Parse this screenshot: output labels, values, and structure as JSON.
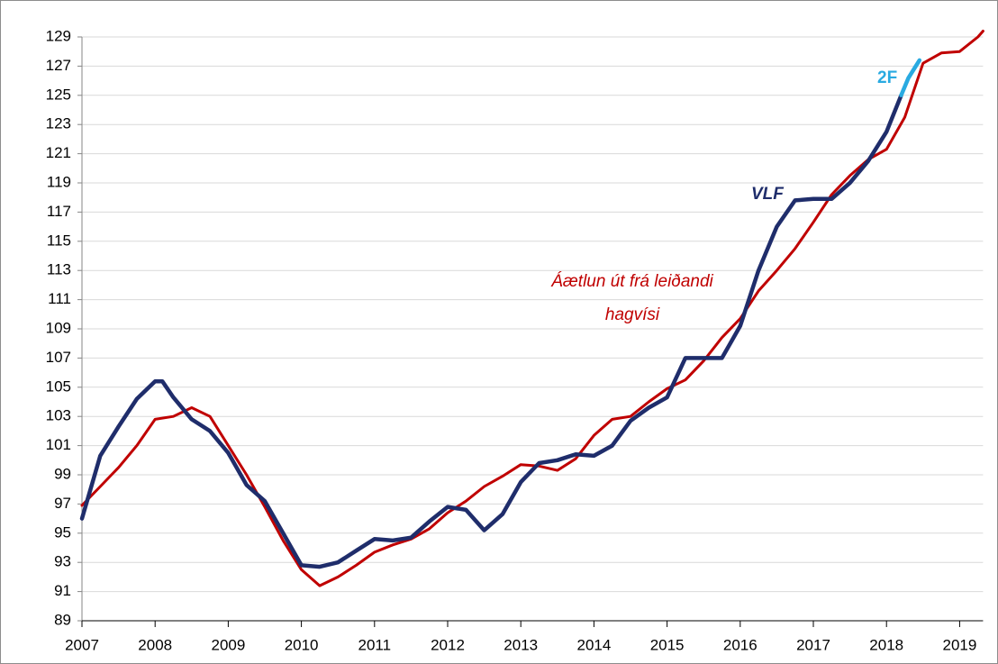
{
  "chart_data": {
    "type": "line",
    "xlim": [
      2007,
      2019.32
    ],
    "xticks": [
      2007,
      2008,
      2009,
      2010,
      2011,
      2012,
      2013,
      2014,
      2015,
      2016,
      2017,
      2018,
      2019
    ],
    "ylim": [
      89,
      129
    ],
    "yticks": [
      89,
      91,
      93,
      95,
      97,
      99,
      101,
      103,
      105,
      107,
      109,
      111,
      113,
      115,
      117,
      119,
      121,
      123,
      125,
      127,
      129
    ],
    "grid": true,
    "series": [
      {
        "name": "Áætlun út frá leiðandi hagvísi",
        "color": "#c00000",
        "x": [
          2007.0,
          2007.25,
          2007.5,
          2007.75,
          2008.0,
          2008.25,
          2008.5,
          2008.75,
          2009.0,
          2009.25,
          2009.5,
          2009.75,
          2010.0,
          2010.25,
          2010.5,
          2010.75,
          2011.0,
          2011.25,
          2011.5,
          2011.75,
          2012.0,
          2012.25,
          2012.5,
          2012.75,
          2013.0,
          2013.25,
          2013.5,
          2013.75,
          2014.0,
          2014.25,
          2014.5,
          2014.75,
          2015.0,
          2015.25,
          2015.5,
          2015.75,
          2016.0,
          2016.25,
          2016.5,
          2016.75,
          2017.0,
          2017.25,
          2017.5,
          2017.75,
          2018.0,
          2018.25,
          2018.5,
          2018.75,
          2019.0,
          2019.25,
          2019.32
        ],
        "values": [
          96.9,
          98.2,
          99.5,
          101.0,
          102.8,
          103.0,
          103.6,
          103.0,
          101.0,
          99.0,
          96.8,
          94.5,
          92.5,
          91.4,
          92.0,
          92.8,
          93.7,
          94.2,
          94.6,
          95.3,
          96.4,
          97.2,
          98.2,
          98.9,
          99.7,
          99.6,
          99.3,
          100.1,
          101.7,
          102.8,
          103.0,
          104.0,
          104.9,
          105.5,
          106.8,
          108.4,
          109.7,
          111.6,
          113.0,
          114.5,
          116.3,
          118.2,
          119.5,
          120.6,
          121.3,
          123.5,
          127.2,
          127.9,
          128.0,
          129.0,
          129.4
        ]
      },
      {
        "name": "VLF",
        "color": "#1f2d6b",
        "x": [
          2007.0,
          2007.25,
          2007.5,
          2007.75,
          2008.0,
          2008.1,
          2008.25,
          2008.5,
          2008.75,
          2009.0,
          2009.25,
          2009.5,
          2009.75,
          2010.0,
          2010.25,
          2010.5,
          2010.75,
          2011.0,
          2011.25,
          2011.5,
          2011.75,
          2012.0,
          2012.25,
          2012.5,
          2012.75,
          2013.0,
          2013.25,
          2013.5,
          2013.75,
          2014.0,
          2014.25,
          2014.5,
          2014.75,
          2015.0,
          2015.25,
          2015.5,
          2015.75,
          2016.0,
          2016.25,
          2016.5,
          2016.75,
          2017.0,
          2017.25,
          2017.5,
          2017.75,
          2018.0,
          2018.2
        ],
        "values": [
          96.0,
          100.3,
          102.3,
          104.2,
          105.4,
          105.4,
          104.3,
          102.8,
          102.0,
          100.5,
          98.3,
          97.2,
          95.0,
          92.8,
          92.7,
          93.0,
          93.8,
          94.6,
          94.5,
          94.7,
          95.8,
          96.8,
          96.6,
          95.2,
          96.3,
          98.5,
          99.8,
          100.0,
          100.4,
          100.3,
          101.0,
          102.7,
          103.6,
          104.3,
          107.0,
          107.0,
          107.0,
          109.2,
          113.0,
          116.0,
          117.8,
          117.9,
          117.9,
          119.0,
          120.5,
          122.5,
          125.0
        ]
      },
      {
        "name": "2F",
        "color": "#29aae1",
        "x": [
          2018.2,
          2018.3,
          2018.45
        ],
        "values": [
          125.0,
          126.2,
          127.4
        ]
      }
    ]
  }
}
